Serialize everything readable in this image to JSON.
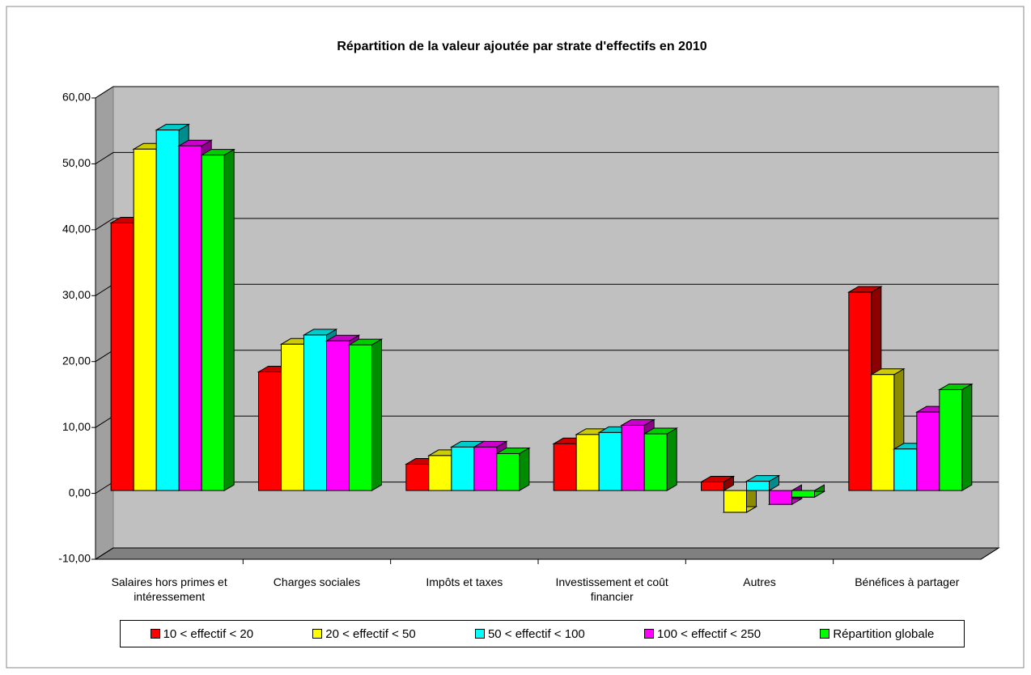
{
  "chart_data": {
    "type": "bar3d",
    "title": "Répartition de la valeur ajoutée par strate d'effectifs en 2010",
    "categories": [
      "Salaires hors primes et intéressement",
      "Charges sociales",
      "Impôts et taxes",
      "Investissement et coût financier",
      "Autres",
      "Bénéfices à partager"
    ],
    "series": [
      {
        "name": "10 < effectif < 20",
        "color": "#ff0000",
        "values": [
          40.6,
          18.0,
          4.0,
          7.1,
          1.3,
          30.1
        ]
      },
      {
        "name": "20 < effectif < 50",
        "color": "#ffff00",
        "values": [
          51.8,
          22.2,
          5.3,
          8.5,
          -3.3,
          17.6
        ]
      },
      {
        "name": "50 < effectif < 100",
        "color": "#00ffff",
        "values": [
          54.7,
          23.6,
          6.6,
          8.8,
          1.4,
          6.3
        ]
      },
      {
        "name": "100 < effectif < 250",
        "color": "#ff00ff",
        "values": [
          52.3,
          22.7,
          6.6,
          9.9,
          -2.1,
          11.9
        ]
      },
      {
        "name": "Répartition globale",
        "color": "#00ff00",
        "values": [
          50.9,
          22.1,
          5.6,
          8.6,
          -1.0,
          15.3
        ]
      }
    ],
    "ylim": [
      -10,
      60
    ],
    "yticks": [
      {
        "value": -10,
        "label": "-10,00"
      },
      {
        "value": 0,
        "label": "0,00"
      },
      {
        "value": 10,
        "label": "10,00"
      },
      {
        "value": 20,
        "label": "20,00"
      },
      {
        "value": 30,
        "label": "30,00"
      },
      {
        "value": 40,
        "label": "40,00"
      },
      {
        "value": 50,
        "label": "50,00"
      },
      {
        "value": 60,
        "label": "60,00"
      }
    ],
    "grid": true,
    "legend": "bottom"
  }
}
